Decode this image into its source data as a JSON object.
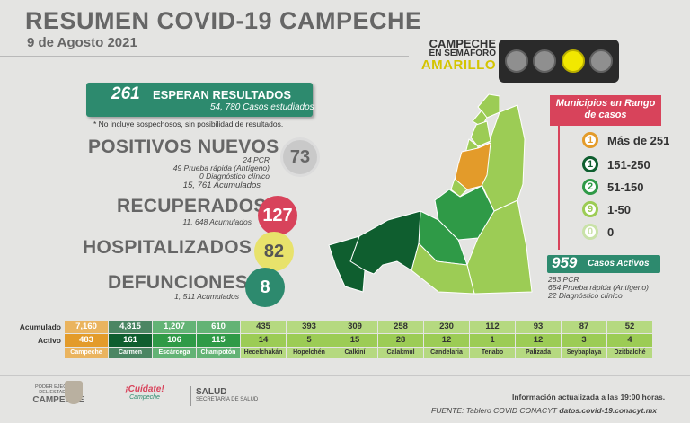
{
  "header": {
    "title": "RESUMEN COVID-19 CAMPECHE",
    "date": "9 de Agosto 2021"
  },
  "semaforo": {
    "line1": "CAMPECHE",
    "line2": "EN SEMÁFORO",
    "line3": "AMARILLO",
    "lights": [
      "off",
      "off",
      "on",
      "off"
    ],
    "active_color": "#f2e800"
  },
  "pending": {
    "count": "261",
    "label": "ESPERAN RESULTADOS",
    "studied": "54, 780 Casos estudiados",
    "note": "* No incluye sospechosos, sin posibilidad de resultados."
  },
  "positivos": {
    "label": "POSITIVOS NUEVOS",
    "value": "73",
    "pcr": "24 PCR",
    "rapida": "49 Prueba rápida (Antígeno)",
    "clinico": "0 Diagnóstico clínico",
    "acumulados": "15, 761 Acumulados"
  },
  "recuperados": {
    "label": "RECUPERADOS",
    "value": "127",
    "acumulados": "11, 648 Acumulados"
  },
  "hospitalizados": {
    "label": "HOSPITALIZADOS",
    "value": "82"
  },
  "defunciones": {
    "label": "DEFUNCIONES",
    "value": "8",
    "acumulados": "1, 511 Acumulados"
  },
  "municipios": {
    "title": "Municipios en Rango de casos",
    "ranges": [
      {
        "count": "1",
        "range": "Más de 251",
        "color": "#e39b2a"
      },
      {
        "count": "1",
        "range": "151-250",
        "color": "#0f5e2f"
      },
      {
        "count": "2",
        "range": "51-150",
        "color": "#2f9a47"
      },
      {
        "count": "9",
        "range": "1-50",
        "color": "#9ccc55"
      },
      {
        "count": "0",
        "range": "0",
        "color": "#c9e2a8"
      }
    ]
  },
  "activos": {
    "count": "959",
    "label": "Casos Activos",
    "pcr": "283 PCR",
    "rapida": "654 Prueba rápida (Antígeno)",
    "clinico": "22 Diagnóstico clínico"
  },
  "table": {
    "row_labels": [
      "Acumulado",
      "Activo"
    ],
    "columns": [
      {
        "name": "Campeche",
        "acumulado": "7,160",
        "activo": "483",
        "color": "#e39b2a"
      },
      {
        "name": "Carmen",
        "acumulado": "4,815",
        "activo": "161",
        "color": "#0f5e2f"
      },
      {
        "name": "Escárcega",
        "acumulado": "1,207",
        "activo": "106",
        "color": "#2f9a47"
      },
      {
        "name": "Champotón",
        "acumulado": "610",
        "activo": "115",
        "color": "#2f9a47"
      },
      {
        "name": "Hecelchakán",
        "acumulado": "435",
        "activo": "14",
        "color": "#9ccc55"
      },
      {
        "name": "Hopelchén",
        "acumulado": "393",
        "activo": "5",
        "color": "#9ccc55"
      },
      {
        "name": "Calkiní",
        "acumulado": "309",
        "activo": "15",
        "color": "#9ccc55"
      },
      {
        "name": "Calakmul",
        "acumulado": "258",
        "activo": "28",
        "color": "#9ccc55"
      },
      {
        "name": "Candelaria",
        "acumulado": "230",
        "activo": "12",
        "color": "#9ccc55"
      },
      {
        "name": "Tenabo",
        "acumulado": "112",
        "activo": "1",
        "color": "#9ccc55"
      },
      {
        "name": "Palizada",
        "acumulado": "93",
        "activo": "12",
        "color": "#9ccc55"
      },
      {
        "name": "Seybaplaya",
        "acumulado": "87",
        "activo": "3",
        "color": "#9ccc55"
      },
      {
        "name": "Dzitbalché",
        "acumulado": "52",
        "activo": "4",
        "color": "#9ccc55"
      }
    ]
  },
  "footer": {
    "logo1_l1": "PODER EJECUTIVO",
    "logo1_l2": "DEL ESTADO DE",
    "logo1_l3": "CAMPECHE",
    "logo2_l1": "¡Cuídate!",
    "logo2_l2": "Campeche",
    "logo3_l1": "SALUD",
    "logo3_l2": "SECRETARÍA DE SALUD",
    "updated": "Información actualizada a las 19:00 horas.",
    "source_label": "FUENTE: Tablero COVID CONACYT",
    "source_url": "datos.covid-19.conacyt.mx"
  }
}
